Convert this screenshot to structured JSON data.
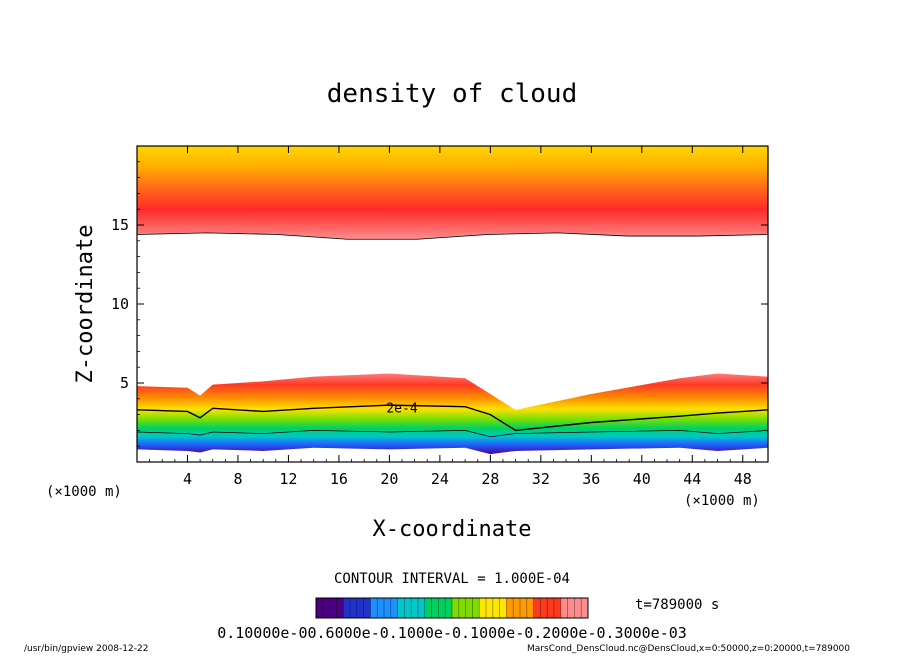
{
  "chart_data": {
    "type": "heatmap",
    "title": "density of cloud",
    "xlabel": "X-coordinate",
    "ylabel": "Z-coordinate",
    "x_unit_label": "(×1000 m)",
    "xlim": [
      0,
      50
    ],
    "ylim": [
      0,
      20
    ],
    "x_ticks": [
      4,
      8,
      12,
      16,
      20,
      24,
      28,
      32,
      36,
      40,
      44,
      48
    ],
    "y_ticks": [
      5,
      10,
      15
    ],
    "contour_interval_text": "CONTOUR INTERVAL = 1.000E-04",
    "contour_label": "2e-4",
    "time_label": "t=789000 s",
    "colorbar_text": "0.10000e-00.6000e-0.1000e-0.1000e-0.2000e-0.3000e-03",
    "colorbar_colors": [
      "#4b0082",
      "#2233cc",
      "#1e90ff",
      "#00c8c8",
      "#00d060",
      "#7fdc00",
      "#ffe600",
      "#ff9a00",
      "#ff3a1e",
      "#ff8c8c"
    ],
    "upper_cloud": {
      "base_z": [
        14.4,
        14.5,
        14.4,
        14.1,
        14.1,
        14.4,
        14.5,
        14.3,
        14.3,
        14.4
      ],
      "top_z": 20
    },
    "lower_cloud": {
      "x": [
        0,
        4,
        5,
        6,
        10,
        14,
        20,
        26,
        28,
        30,
        36,
        43,
        46,
        50
      ],
      "top_z": [
        4.8,
        4.7,
        4.2,
        4.9,
        5.1,
        5.4,
        5.6,
        5.3,
        4.3,
        3.3,
        4.3,
        5.3,
        5.6,
        5.4
      ],
      "contour_2e4_z": [
        3.3,
        3.2,
        2.8,
        3.4,
        3.2,
        3.4,
        3.6,
        3.5,
        3.0,
        2.0,
        2.5,
        2.9,
        3.1,
        3.3
      ],
      "base_z": [
        0.8,
        0.7,
        0.6,
        0.8,
        0.7,
        0.9,
        0.8,
        0.9,
        0.5,
        0.7,
        0.8,
        0.9,
        0.7,
        0.9
      ]
    }
  },
  "footer": {
    "left": "/usr/bin/gpview   2008-12-22",
    "right": "MarsCond_DensCloud.nc@DensCloud,x=0:50000,z=0:20000,t=789000"
  }
}
